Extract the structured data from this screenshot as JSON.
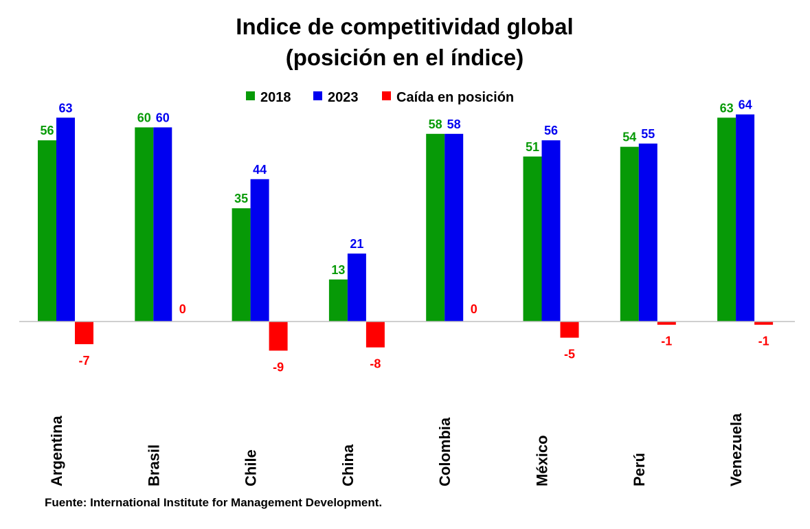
{
  "colors": {
    "s2018": "#079A07",
    "s2023": "#0000F0",
    "drop": "#FF0000",
    "axis": "#BFBFBF"
  },
  "chart_data": {
    "type": "bar",
    "title": [
      "Indice de competitividad global",
      "(posición en el índice)"
    ],
    "categories": [
      "Argentina",
      "Brasil",
      "Chile",
      "China",
      "Colombia",
      "México",
      "Perú",
      "Venezuela"
    ],
    "series": [
      {
        "name": "2018",
        "values": [
          56,
          60,
          35,
          13,
          58,
          51,
          54,
          63
        ]
      },
      {
        "name": "2023",
        "values": [
          63,
          60,
          44,
          21,
          58,
          56,
          55,
          64
        ]
      },
      {
        "name": "Caída en posición",
        "values": [
          -7,
          0,
          -9,
          -8,
          0,
          -5,
          -1,
          -1
        ]
      }
    ],
    "ylim": [
      -12,
      68
    ],
    "legend": "top-center",
    "grid": false
  },
  "source": "Fuente: International Institute for Management Development."
}
